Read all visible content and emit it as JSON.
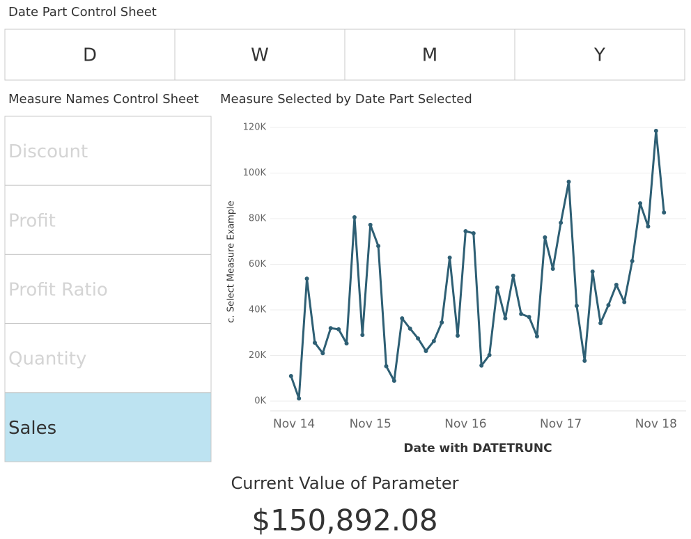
{
  "date_part": {
    "title": "Date Part Control Sheet",
    "buttons": [
      "D",
      "W",
      "M",
      "Y"
    ]
  },
  "measure_names": {
    "title": "Measure Names Control Sheet",
    "items": [
      "Discount",
      "Profit",
      "Profit Ratio",
      "Quantity",
      "Sales"
    ],
    "selected_index": 4
  },
  "chart_data": {
    "type": "line",
    "title": "Measure Selected by Date Part Selected",
    "x_label": "Date with DATETRUNC",
    "y_label": "c. Select Measure Example",
    "x": [
      "2015-01",
      "2015-02",
      "2015-03",
      "2015-04",
      "2015-05",
      "2015-06",
      "2015-07",
      "2015-08",
      "2015-09",
      "2015-10",
      "2015-11",
      "2015-12",
      "2016-01",
      "2016-02",
      "2016-03",
      "2016-04",
      "2016-05",
      "2016-06",
      "2016-07",
      "2016-08",
      "2016-09",
      "2016-10",
      "2016-11",
      "2016-12",
      "2017-01",
      "2017-02",
      "2017-03",
      "2017-04",
      "2017-05",
      "2017-06",
      "2017-07",
      "2017-08",
      "2017-09",
      "2017-10",
      "2017-11",
      "2017-12",
      "2018-01",
      "2018-02",
      "2018-03",
      "2018-04",
      "2018-05",
      "2018-06",
      "2018-07",
      "2018-08",
      "2018-09",
      "2018-10",
      "2018-11",
      "2018-12"
    ],
    "series": [
      {
        "name": "c. Select Measure Example",
        "color": "#2e5f74",
        "values": [
          11000,
          1200,
          53700,
          25600,
          21000,
          32000,
          31500,
          25300,
          80600,
          29000,
          77300,
          68000,
          15300,
          8900,
          36300,
          31800,
          27500,
          22000,
          26300,
          34500,
          62900,
          28700,
          74500,
          73600,
          15600,
          20200,
          49800,
          36300,
          55000,
          38200,
          36900,
          28400,
          71800,
          58000,
          78200,
          96200,
          41800,
          17700,
          56800,
          34200,
          42100,
          51000,
          43400,
          61400,
          86700,
          76600,
          118500,
          82700
        ]
      }
    ],
    "xlim": [
      "2014-11",
      "2019-02"
    ],
    "xticks": [
      {
        "value": "2014-11",
        "label": "Nov 14"
      },
      {
        "value": "2015-11",
        "label": "Nov 15"
      },
      {
        "value": "2016-11",
        "label": "Nov 16"
      },
      {
        "value": "2017-11",
        "label": "Nov 17"
      },
      {
        "value": "2018-11",
        "label": "Nov 18"
      }
    ],
    "ylim": [
      0,
      120000
    ],
    "yticks": [
      {
        "value": 0,
        "label": "0K"
      },
      {
        "value": 20000,
        "label": "20K"
      },
      {
        "value": 40000,
        "label": "40K"
      },
      {
        "value": 60000,
        "label": "60K"
      },
      {
        "value": 80000,
        "label": "80K"
      },
      {
        "value": 100000,
        "label": "100K"
      },
      {
        "value": 120000,
        "label": "120K"
      }
    ],
    "grid": true
  },
  "parameter": {
    "title": "Current Value of Parameter",
    "value": "$150,892.08"
  }
}
